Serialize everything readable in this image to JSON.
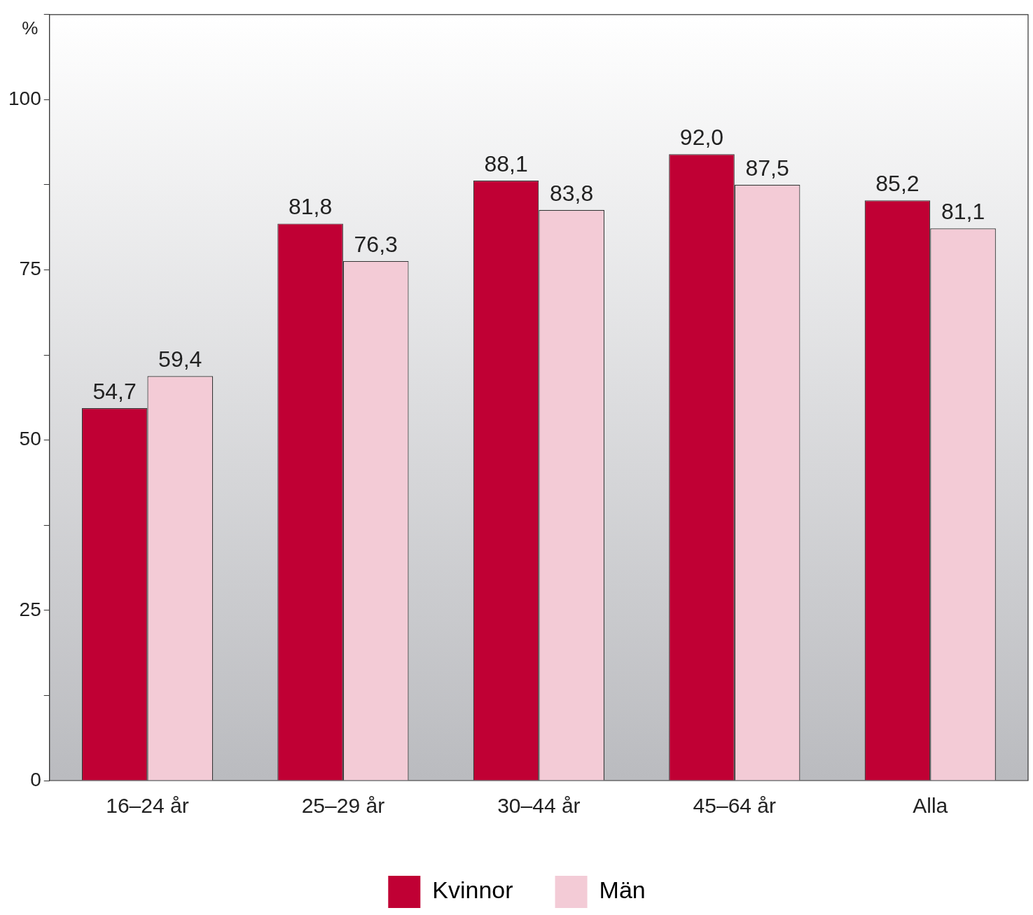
{
  "chart_data": {
    "type": "bar",
    "ylabel": "%",
    "categories": [
      "16–24 år",
      "25–29 år",
      "30–44 år",
      "45–64 år",
      "Alla"
    ],
    "series": [
      {
        "name": "Kvinnor",
        "color": "#c00034",
        "values": [
          54.7,
          81.8,
          88.1,
          92.0,
          85.2
        ],
        "value_labels": [
          "54,7",
          "81,8",
          "88,1",
          "92,0",
          "85,2"
        ]
      },
      {
        "name": "Män",
        "color": "#f3cbd6",
        "values": [
          59.4,
          76.3,
          83.8,
          87.5,
          81.1
        ],
        "value_labels": [
          "59,4",
          "76,3",
          "83,8",
          "87,5",
          "81,1"
        ]
      }
    ],
    "ylim": [
      0,
      112.5
    ],
    "yticks": [
      0,
      {
        "value": 12.5,
        "label": null
      },
      25,
      {
        "value": 37.5,
        "label": null
      },
      50,
      {
        "value": 62.5,
        "label": null
      },
      75,
      {
        "value": 87.5,
        "label": null
      },
      100,
      {
        "value": 112.5,
        "label": null
      }
    ],
    "grid": false,
    "legend": "bottom"
  }
}
